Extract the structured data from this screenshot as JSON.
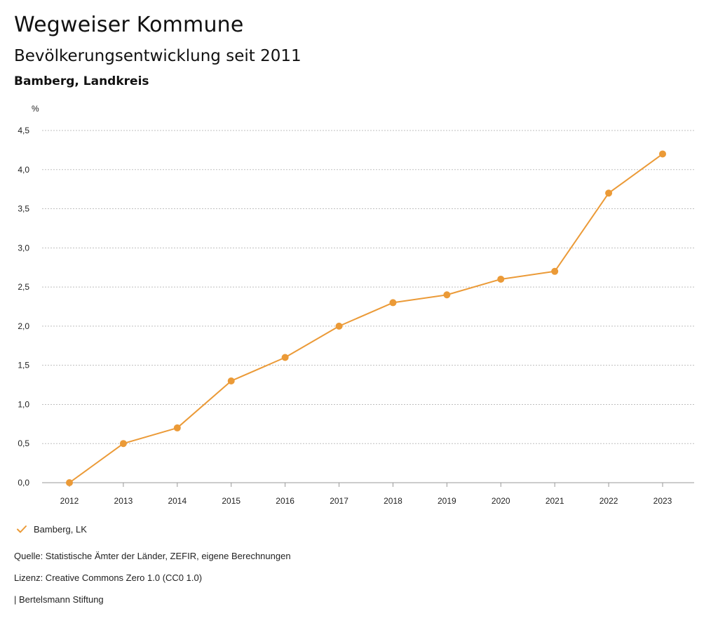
{
  "header": {
    "title": "Wegweiser Kommune",
    "subtitle": "Bevölkerungsentwicklung seit 2011",
    "region": "Bamberg, Landkreis"
  },
  "legend": {
    "label": "Bamberg, LK",
    "icon": "check-icon"
  },
  "footer": {
    "source": "Quelle: Statistische Ämter der Länder, ZEFIR, eigene Berechnungen",
    "license": "Lizenz: Creative Commons Zero 1.0 (CC0 1.0)",
    "brand": "| Bertelsmann Stiftung"
  },
  "colors": {
    "series": "#EB9A37",
    "grid": "#BFBFBF",
    "axis": "#999999"
  },
  "chart_data": {
    "type": "line",
    "title": "Bevölkerungsentwicklung seit 2011",
    "subtitle": "Bamberg, Landkreis",
    "xlabel": "",
    "ylabel": "%",
    "categories": [
      "2012",
      "2013",
      "2014",
      "2015",
      "2016",
      "2017",
      "2018",
      "2019",
      "2020",
      "2021",
      "2022",
      "2023"
    ],
    "series": [
      {
        "name": "Bamberg, LK",
        "values": [
          0.0,
          0.5,
          0.7,
          1.3,
          1.6,
          2.0,
          2.3,
          2.4,
          2.6,
          2.7,
          3.7,
          4.2
        ]
      }
    ],
    "ylim": [
      0,
      4.5
    ],
    "yticks": [
      0,
      0.5,
      1.0,
      1.5,
      2.0,
      2.5,
      3.0,
      3.5,
      4.0,
      4.5
    ],
    "ytick_labels": [
      "0,0",
      "0,5",
      "1,0",
      "1,5",
      "2,0",
      "2,5",
      "3,0",
      "3,5",
      "4,0",
      "4,5"
    ],
    "grid": true,
    "legend_position": "bottom-left"
  }
}
